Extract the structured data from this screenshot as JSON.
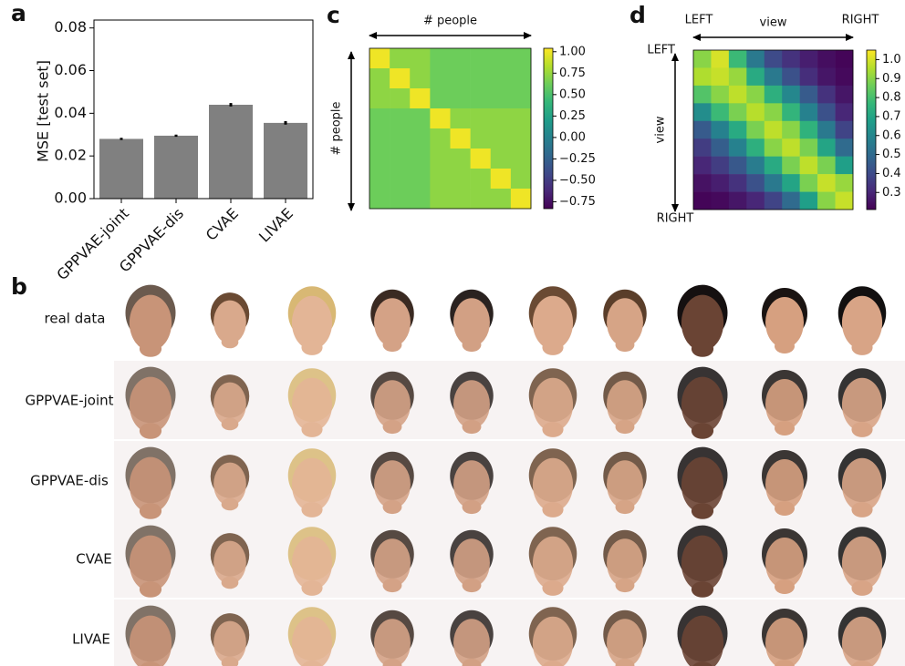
{
  "panel_labels": [
    "a",
    "b",
    "c",
    "d"
  ],
  "chart_data": [
    {
      "type": "bar",
      "categories": [
        "GPPVAE-joint",
        "GPPVAE-dis",
        "CVAE",
        "LIVAE"
      ],
      "values": [
        0.028,
        0.0295,
        0.044,
        0.0355
      ],
      "errors": [
        0.0005,
        0.0005,
        0.0008,
        0.0008
      ],
      "color": "#808080",
      "y_label": "MSE [test set]",
      "ylim": [
        0,
        0.082
      ],
      "yticks": [
        {
          "value": 0,
          "label": "0.00"
        },
        0.02,
        0.04,
        0.06,
        0.08
      ]
    },
    {
      "type": "heatmap",
      "x_label": "# people",
      "y_label": "# people",
      "colormap": "viridis",
      "z": [
        [
          1.0,
          0.72,
          0.72,
          0.62,
          0.62,
          0.62,
          0.62,
          0.62
        ],
        [
          0.72,
          1.0,
          0.72,
          0.62,
          0.62,
          0.62,
          0.62,
          0.62
        ],
        [
          0.72,
          0.72,
          1.0,
          0.62,
          0.62,
          0.62,
          0.62,
          0.62
        ],
        [
          0.62,
          0.62,
          0.62,
          1.0,
          0.72,
          0.72,
          0.72,
          0.72
        ],
        [
          0.62,
          0.62,
          0.62,
          0.72,
          1.0,
          0.72,
          0.72,
          0.72
        ],
        [
          0.62,
          0.62,
          0.62,
          0.72,
          0.72,
          1.0,
          0.72,
          0.72
        ],
        [
          0.62,
          0.62,
          0.62,
          0.72,
          0.72,
          0.72,
          1.0,
          0.72
        ],
        [
          0.62,
          0.62,
          0.62,
          0.72,
          0.72,
          0.72,
          0.72,
          1.0
        ]
      ],
      "zlim": [
        -0.83,
        1.04
      ],
      "zticks": [
        {
          "value": 1,
          "label": "1.00"
        },
        0.75,
        {
          "value": 0.5,
          "label": "0.50"
        },
        0.25,
        {
          "value": 0,
          "label": "0.00"
        },
        {
          "value": -0.25,
          "label": "−0.25"
        },
        {
          "value": -0.5,
          "label": "−0.50"
        },
        {
          "value": -0.75,
          "label": "−0.75"
        }
      ]
    },
    {
      "type": "heatmap",
      "x_label": "view",
      "y_label": "view",
      "x_ends": [
        "LEFT",
        "RIGHT"
      ],
      "y_ends": [
        "LEFT",
        "RIGHT"
      ],
      "colormap": "viridis",
      "z": [
        [
          0.9,
          1.0,
          0.78,
          0.55,
          0.4,
          0.33,
          0.28,
          0.24,
          0.22
        ],
        [
          0.95,
          0.98,
          0.92,
          0.72,
          0.55,
          0.42,
          0.32,
          0.26,
          0.23
        ],
        [
          0.82,
          0.9,
          0.97,
          0.9,
          0.74,
          0.6,
          0.45,
          0.33,
          0.26
        ],
        [
          0.62,
          0.78,
          0.88,
          0.96,
          0.9,
          0.76,
          0.58,
          0.42,
          0.3
        ],
        [
          0.45,
          0.58,
          0.72,
          0.88,
          0.97,
          0.9,
          0.75,
          0.55,
          0.38
        ],
        [
          0.36,
          0.46,
          0.58,
          0.74,
          0.9,
          0.97,
          0.88,
          0.7,
          0.5
        ],
        [
          0.3,
          0.36,
          0.44,
          0.56,
          0.72,
          0.88,
          0.97,
          0.88,
          0.68
        ],
        [
          0.25,
          0.28,
          0.33,
          0.42,
          0.55,
          0.7,
          0.88,
          0.98,
          0.92
        ],
        [
          0.22,
          0.23,
          0.26,
          0.3,
          0.38,
          0.5,
          0.68,
          0.9,
          0.98
        ]
      ],
      "zlim": [
        0.21,
        1.05
      ],
      "zticks": [
        {
          "value": 1,
          "label": "1.0"
        },
        0.9,
        0.8,
        0.7,
        0.6,
        0.5,
        0.4,
        0.3
      ]
    }
  ],
  "faces": {
    "rows": [
      "real data",
      "GPPVAE-joint",
      "GPPVAE-dis",
      "CVAE",
      "LIVAE"
    ]
  }
}
